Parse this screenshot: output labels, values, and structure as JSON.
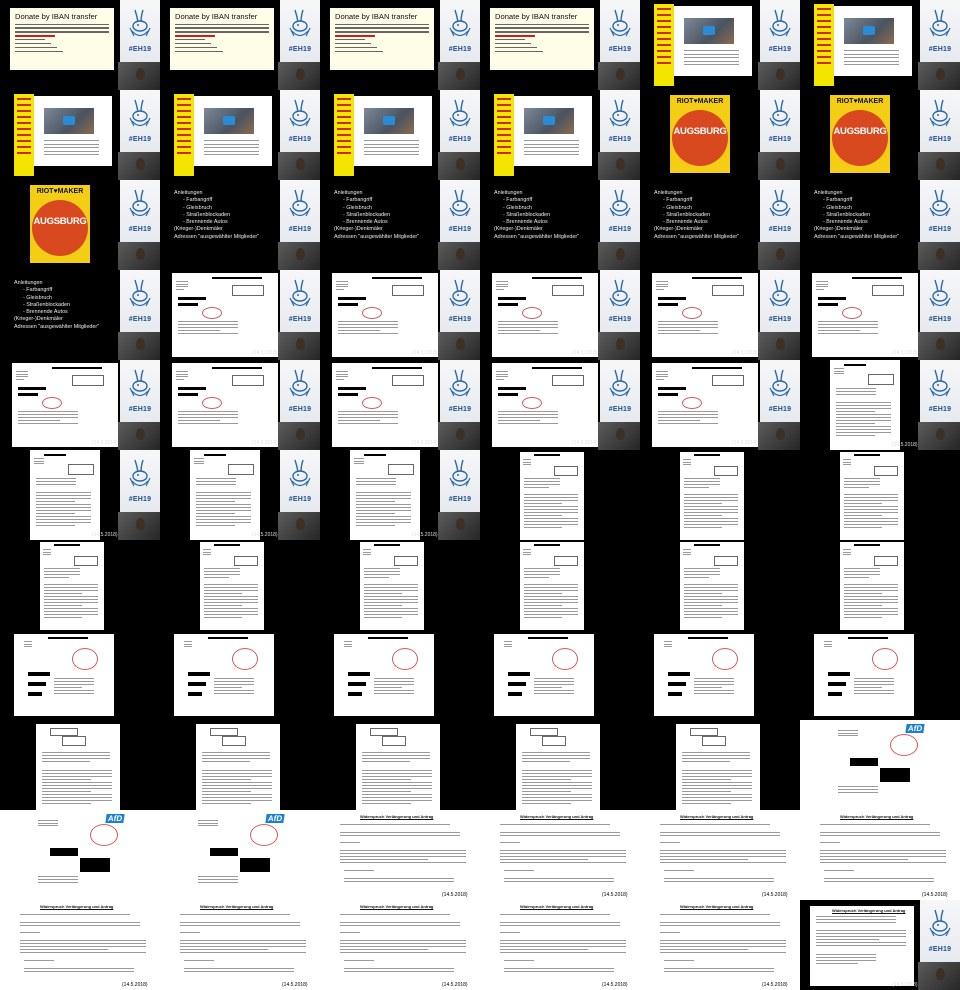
{
  "event_tag": "#EH19",
  "donate": {
    "title": "Donate by IBAN transfer"
  },
  "riot": {
    "brand": "RIOT♥MAKER",
    "city": "AUGSBURG"
  },
  "list": {
    "title": "Anleitungen",
    "items": [
      "- Farbangriff",
      "- Gleisbruch",
      "- Straßenblockaden",
      "- Brennende Autos"
    ],
    "extra": [
      "(Krieger-)Denkmäler",
      "Adressen \"ausgewählter Mitglieder\""
    ]
  },
  "doc": {
    "date": "(14.5.2018)"
  },
  "afd_logo": "AfD",
  "petition": {
    "title": "Widerspruch Verlängerung und Antrag"
  },
  "tiles": [
    "donate",
    "donate",
    "donate",
    "donate",
    "flyer",
    "flyer",
    "flyer",
    "flyer",
    "flyer",
    "flyer",
    "riot",
    "riot",
    "riot",
    "list",
    "list",
    "list",
    "list",
    "list",
    "list",
    "letterA",
    "letterA",
    "letterA",
    "letterA",
    "letterA",
    "letterA",
    "letterA",
    "letterA",
    "letterA",
    "letterA",
    "letterB",
    "letterB",
    "letterB",
    "letterB",
    "docP",
    "docP",
    "docP",
    "docP",
    "docP",
    "docP",
    "docP",
    "docP",
    "docP",
    "docR",
    "docR",
    "docR",
    "docR",
    "docR",
    "docR",
    "docO",
    "docO",
    "docO",
    "docO",
    "docO",
    "afd",
    "afd",
    "afd",
    "pet",
    "pet",
    "pet",
    "pet",
    "pet",
    "pet",
    "pet",
    "pet",
    "pet",
    "final"
  ]
}
